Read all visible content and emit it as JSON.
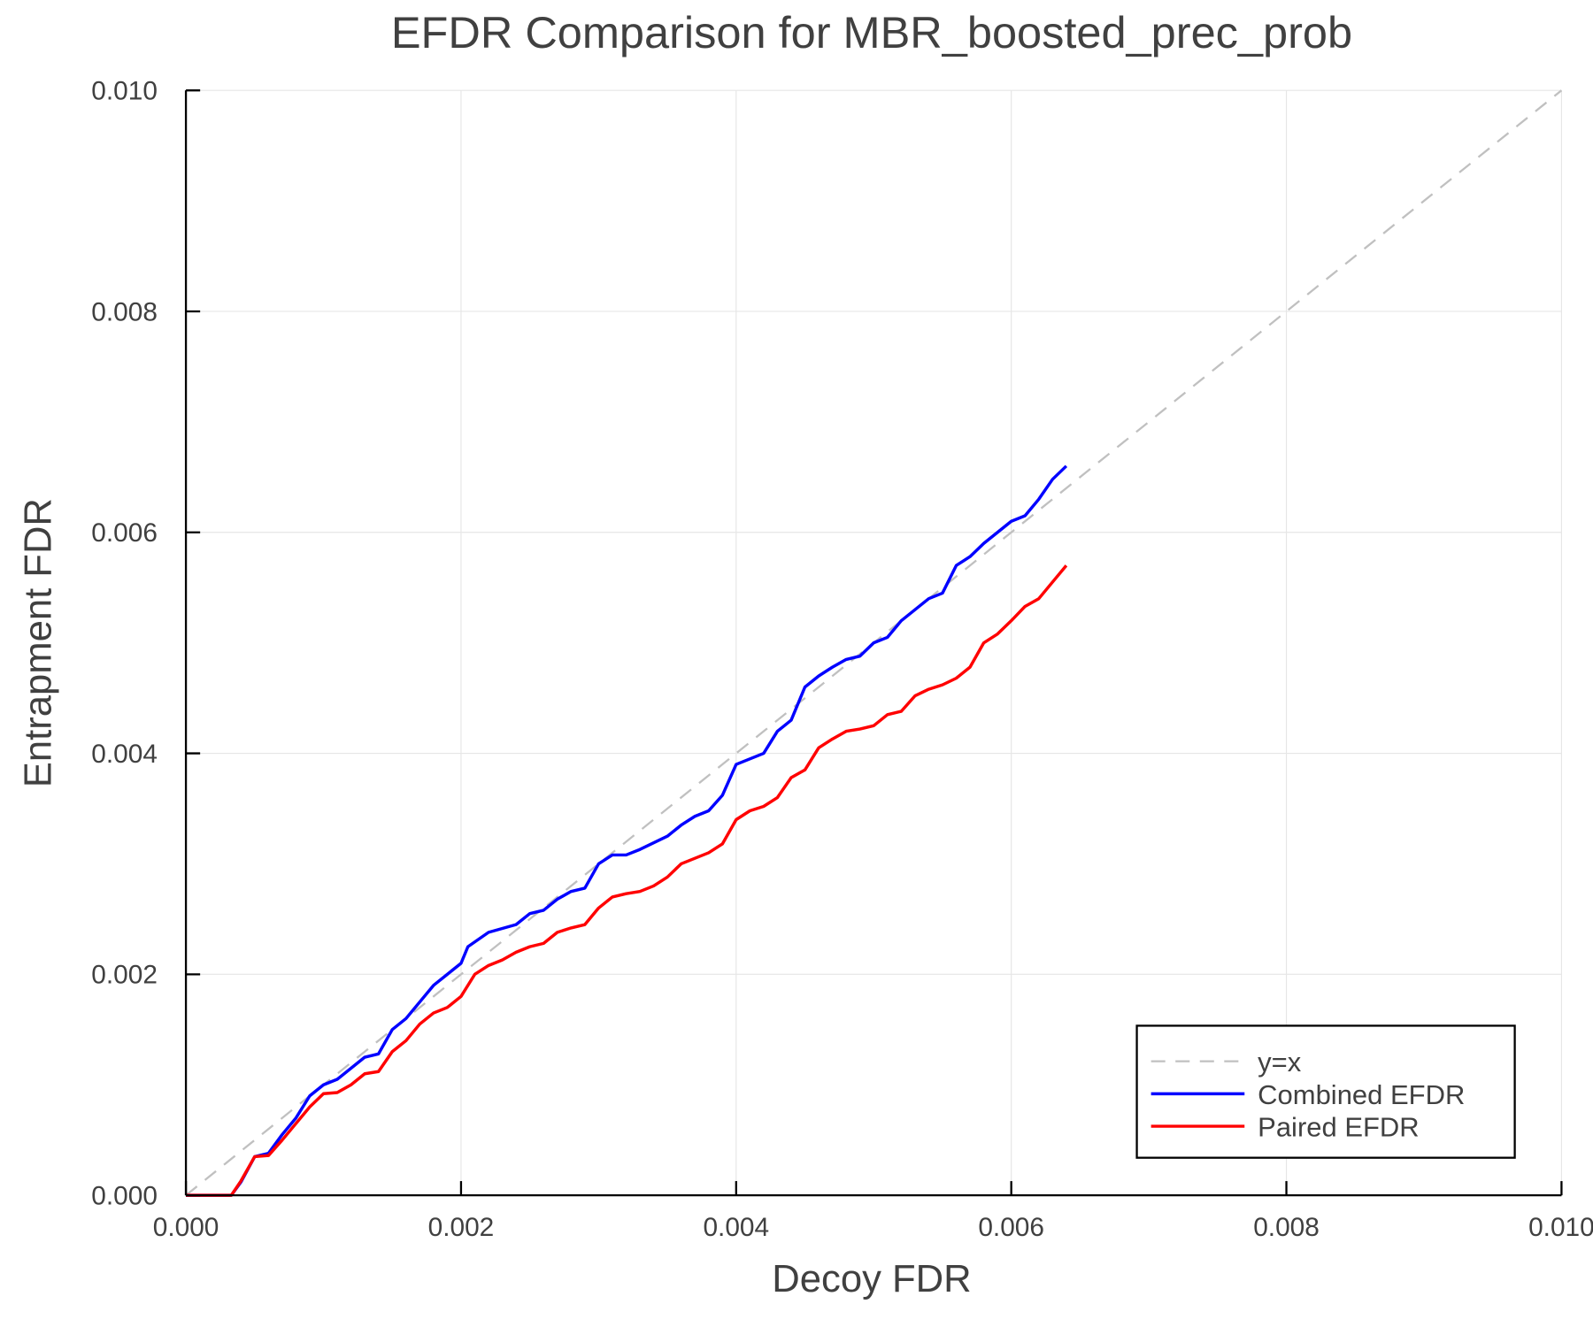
{
  "chart_data": {
    "type": "line",
    "title": "EFDR Comparison for MBR_boosted_prec_prob",
    "xlabel": "Decoy FDR",
    "ylabel": "Entrapment FDR",
    "xlim": [
      0,
      0.01
    ],
    "ylim": [
      0,
      0.01
    ],
    "grid": true,
    "legend_position": "bottom-right",
    "xticks": [
      "0.000",
      "0.002",
      "0.004",
      "0.006",
      "0.008",
      "0.010"
    ],
    "yticks": [
      "0.000",
      "0.002",
      "0.004",
      "0.006",
      "0.008",
      "0.010"
    ],
    "series": [
      {
        "name": "y=x",
        "color": "#c0c0c0",
        "style": "dashed",
        "x": [
          0,
          0.01
        ],
        "y": [
          0,
          0.01
        ]
      },
      {
        "name": "Combined EFDR",
        "color": "#0000ff",
        "style": "solid",
        "x": [
          0,
          0.00033,
          0.0004,
          0.0005,
          0.0006,
          0.0007,
          0.0008,
          0.0009,
          0.001,
          0.0011,
          0.0013,
          0.0014,
          0.0015,
          0.0016,
          0.0017,
          0.0018,
          0.0019,
          0.002,
          0.00205,
          0.0022,
          0.0024,
          0.0025,
          0.0026,
          0.0027,
          0.0028,
          0.0029,
          0.003,
          0.0031,
          0.0032,
          0.0033,
          0.0035,
          0.0036,
          0.0037,
          0.0038,
          0.0039,
          0.004,
          0.0041,
          0.0042,
          0.0043,
          0.0044,
          0.0045,
          0.0046,
          0.0047,
          0.0048,
          0.0049,
          0.005,
          0.0051,
          0.0052,
          0.0053,
          0.0054,
          0.0055,
          0.0056,
          0.0057,
          0.0058,
          0.0059,
          0.006,
          0.0061,
          0.0062,
          0.0063,
          0.0064
        ],
        "y": [
          0,
          0,
          0.00012,
          0.00035,
          0.00038,
          0.00055,
          0.0007,
          0.0009,
          0.001,
          0.00105,
          0.00125,
          0.00128,
          0.0015,
          0.0016,
          0.00175,
          0.0019,
          0.002,
          0.0021,
          0.00225,
          0.00238,
          0.00245,
          0.00255,
          0.00258,
          0.00268,
          0.00275,
          0.00278,
          0.003,
          0.00308,
          0.00308,
          0.00313,
          0.00325,
          0.00335,
          0.00343,
          0.00348,
          0.00362,
          0.0039,
          0.00395,
          0.004,
          0.0042,
          0.0043,
          0.0046,
          0.0047,
          0.00478,
          0.00485,
          0.00488,
          0.005,
          0.00505,
          0.0052,
          0.0053,
          0.0054,
          0.00545,
          0.0057,
          0.00578,
          0.0059,
          0.006,
          0.0061,
          0.00615,
          0.0063,
          0.00648,
          0.0066
        ]
      },
      {
        "name": "Paired EFDR",
        "color": "#ff0000",
        "style": "solid",
        "x": [
          0,
          0.00033,
          0.0004,
          0.0005,
          0.0006,
          0.0007,
          0.0008,
          0.0009,
          0.001,
          0.0011,
          0.0012,
          0.0013,
          0.0014,
          0.0015,
          0.0016,
          0.0017,
          0.0018,
          0.0019,
          0.002,
          0.0021,
          0.0022,
          0.0023,
          0.0024,
          0.0025,
          0.0026,
          0.0027,
          0.0028,
          0.0029,
          0.003,
          0.0031,
          0.0032,
          0.0033,
          0.0034,
          0.0035,
          0.0036,
          0.0037,
          0.0038,
          0.0039,
          0.004,
          0.0041,
          0.0042,
          0.0043,
          0.0044,
          0.0045,
          0.0046,
          0.0047,
          0.0048,
          0.0049,
          0.005,
          0.0051,
          0.0052,
          0.0053,
          0.0054,
          0.0055,
          0.0056,
          0.0057,
          0.0058,
          0.0059,
          0.006,
          0.0061,
          0.0062,
          0.0063,
          0.0064
        ],
        "y": [
          0,
          0,
          0.00013,
          0.00035,
          0.00036,
          0.0005,
          0.00065,
          0.0008,
          0.00092,
          0.00093,
          0.001,
          0.0011,
          0.00112,
          0.0013,
          0.0014,
          0.00155,
          0.00165,
          0.0017,
          0.0018,
          0.002,
          0.00208,
          0.00213,
          0.0022,
          0.00225,
          0.00228,
          0.00238,
          0.00242,
          0.00245,
          0.0026,
          0.0027,
          0.00273,
          0.00275,
          0.0028,
          0.00288,
          0.003,
          0.00305,
          0.0031,
          0.00318,
          0.0034,
          0.00348,
          0.00352,
          0.0036,
          0.00378,
          0.00385,
          0.00405,
          0.00413,
          0.0042,
          0.00422,
          0.00425,
          0.00435,
          0.00438,
          0.00452,
          0.00458,
          0.00462,
          0.00468,
          0.00478,
          0.005,
          0.00508,
          0.0052,
          0.00533,
          0.0054,
          0.00555,
          0.0057
        ]
      }
    ]
  }
}
